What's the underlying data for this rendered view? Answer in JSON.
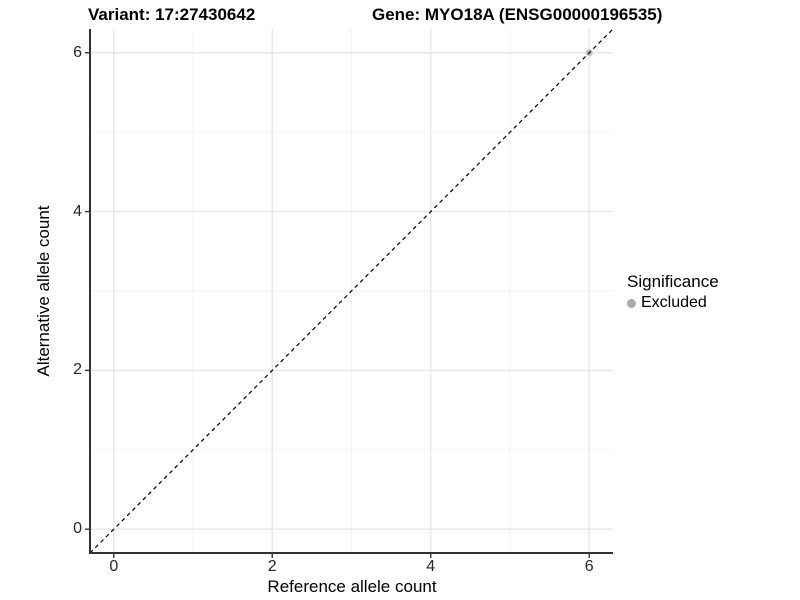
{
  "header": {
    "variant_title": "Variant: 17:27430642",
    "gene_title": "Gene: MYO18A (ENSG00000196535)"
  },
  "axes": {
    "x": {
      "label": "Reference allele count",
      "tick_labels": [
        "0",
        "2",
        "4",
        "6"
      ]
    },
    "y": {
      "label": "Alternative allele count",
      "tick_labels": [
        "0",
        "2",
        "4",
        "6"
      ]
    }
  },
  "legend": {
    "title": "Significance",
    "items": [
      {
        "label": "Excluded",
        "color": "#a9a9a9"
      }
    ]
  },
  "colors": {
    "background": "#ffffff",
    "axis_line": "#333333",
    "major_grid": "#e6e6e6",
    "minor_grid": "#f2f2f2",
    "reference_line": "#000000",
    "point_excluded": "#bebebe",
    "tick_text": "#262626"
  },
  "chart_data": {
    "type": "scatter",
    "title": "Variant: 17:27430642 / Gene: MYO18A (ENSG00000196535)",
    "xlabel": "Reference allele count",
    "ylabel": "Alternative allele count",
    "xlim": [
      -0.3,
      6.3
    ],
    "ylim": [
      -0.3,
      6.3
    ],
    "x_breaks": [
      0,
      2,
      4,
      6
    ],
    "y_breaks": [
      0,
      2,
      4,
      6
    ],
    "x_minor_breaks": [
      1,
      3,
      5
    ],
    "y_minor_breaks": [
      1,
      3,
      5
    ],
    "grid": true,
    "legend_position": "right",
    "series": [
      {
        "name": "Excluded",
        "color": "#bebebe",
        "points": [
          [
            6,
            6
          ]
        ]
      }
    ],
    "reference_line": {
      "kind": "identity y=x",
      "style": "dashed",
      "x": [
        -0.3,
        6.3
      ],
      "y": [
        -0.3,
        6.3
      ],
      "color": "#000000"
    }
  }
}
